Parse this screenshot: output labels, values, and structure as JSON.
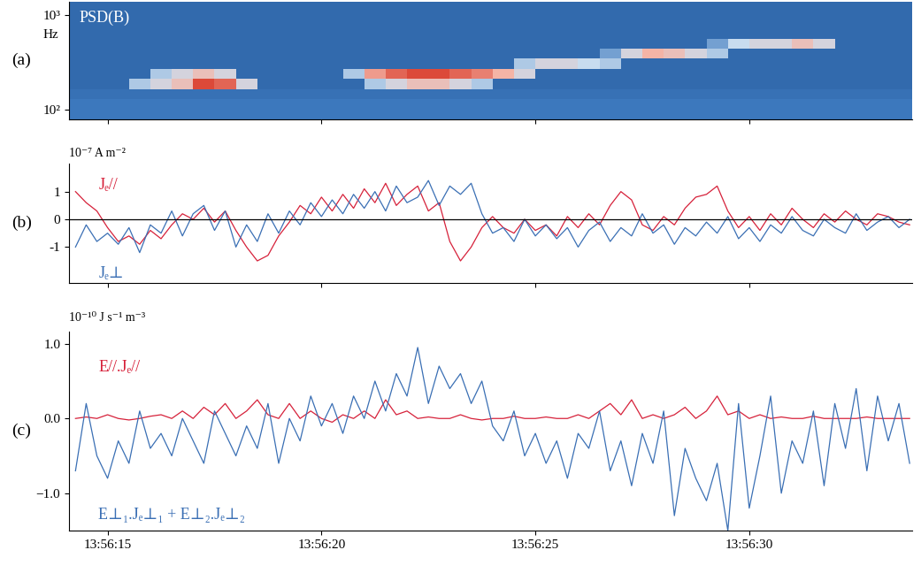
{
  "chart_data": [
    {
      "type": "heatmap",
      "label": "(a)",
      "title": "PSD(B)",
      "y_label": "Hz",
      "log": "y",
      "tick_labels": "y",
      "xlim": [
        14.1,
        33.8
      ],
      "xticks": [
        {
          "value": 15,
          "label": "13:56:15"
        },
        {
          "value": 20,
          "label": "13:56:20"
        },
        {
          "value": 25,
          "label": "13:56:25"
        },
        {
          "value": 30,
          "label": "13:56:30"
        }
      ],
      "ylim": [
        80,
        1370
      ],
      "yticks": [
        {
          "value": 100,
          "label": "10²"
        },
        {
          "value": 1000,
          "label": "10³"
        }
      ],
      "color_range": [
        0,
        1
      ],
      "time_edges": [
        14.0,
        14.5,
        15.0,
        15.5,
        16.0,
        16.5,
        17.0,
        17.5,
        18.0,
        18.5,
        19.0,
        19.5,
        20.0,
        20.5,
        21.0,
        21.5,
        22.0,
        22.5,
        23.0,
        23.5,
        24.0,
        24.5,
        25.0,
        25.5,
        26.0,
        26.5,
        27.0,
        27.5,
        28.0,
        28.5,
        29.0,
        29.5,
        30.0,
        30.5,
        31.0,
        31.5,
        32.0,
        32.5,
        33.0,
        33.5,
        34.0
      ],
      "freq_edges": [
        80,
        102,
        130,
        166,
        212,
        270,
        345,
        440,
        560,
        715,
        910,
        1160,
        1370
      ],
      "cells": [
        [
          0.3,
          0.3,
          0.3,
          0.3,
          0.3,
          0.3,
          0.3,
          0.3,
          0.3,
          0.3,
          0.3,
          0.3,
          0.3,
          0.3,
          0.3,
          0.3,
          0.3,
          0.3,
          0.3,
          0.3,
          0.3,
          0.3,
          0.3,
          0.3,
          0.3,
          0.3,
          0.3,
          0.3,
          0.3,
          0.3,
          0.3,
          0.3,
          0.3,
          0.3,
          0.3,
          0.3,
          0.3,
          0.3,
          0.3,
          0.3
        ],
        [
          0.3,
          0.3,
          0.3,
          0.3,
          0.3,
          0.3,
          0.3,
          0.3,
          0.3,
          0.3,
          0.3,
          0.3,
          0.3,
          0.3,
          0.3,
          0.3,
          0.3,
          0.3,
          0.3,
          0.3,
          0.3,
          0.3,
          0.3,
          0.3,
          0.3,
          0.3,
          0.3,
          0.3,
          0.3,
          0.3,
          0.3,
          0.3,
          0.3,
          0.3,
          0.3,
          0.3,
          0.3,
          0.3,
          0.3,
          0.3
        ],
        [
          0.25,
          0.25,
          0.25,
          0.25,
          0.25,
          0.25,
          0.25,
          0.25,
          0.25,
          0.25,
          0.25,
          0.25,
          0.25,
          0.25,
          0.25,
          0.25,
          0.25,
          0.25,
          0.25,
          0.25,
          0.25,
          0.25,
          0.25,
          0.25,
          0.25,
          0.25,
          0.25,
          0.25,
          0.25,
          0.25,
          0.25,
          0.25,
          0.25,
          0.25,
          0.25,
          0.25,
          0.25,
          0.25,
          0.25,
          0.25
        ],
        [
          0.2,
          0.2,
          0.2,
          0.5,
          0.6,
          0.7,
          0.95,
          0.9,
          0.6,
          0.2,
          0.2,
          0.2,
          0.2,
          0.2,
          0.5,
          0.6,
          0.7,
          0.7,
          0.6,
          0.5,
          0.2,
          0.2,
          0.2,
          0.2,
          0.2,
          0.2,
          0.2,
          0.2,
          0.2,
          0.2,
          0.2,
          0.2,
          0.2,
          0.2,
          0.2,
          0.2,
          0.2,
          0.2,
          0.2,
          0.2
        ],
        [
          0.2,
          0.2,
          0.2,
          0.2,
          0.5,
          0.6,
          0.7,
          0.6,
          0.2,
          0.2,
          0.2,
          0.2,
          0.2,
          0.5,
          0.8,
          0.9,
          0.95,
          0.95,
          0.9,
          0.85,
          0.75,
          0.6,
          0.2,
          0.2,
          0.2,
          0.2,
          0.2,
          0.2,
          0.2,
          0.2,
          0.2,
          0.2,
          0.2,
          0.2,
          0.2,
          0.2,
          0.2,
          0.2,
          0.2,
          0.2
        ],
        [
          0.2,
          0.2,
          0.2,
          0.2,
          0.2,
          0.2,
          0.2,
          0.2,
          0.2,
          0.2,
          0.2,
          0.2,
          0.2,
          0.2,
          0.2,
          0.2,
          0.2,
          0.2,
          0.2,
          0.2,
          0.2,
          0.5,
          0.6,
          0.6,
          0.55,
          0.5,
          0.2,
          0.2,
          0.2,
          0.2,
          0.2,
          0.2,
          0.2,
          0.2,
          0.2,
          0.2,
          0.2,
          0.2,
          0.2,
          0.2
        ],
        [
          0.2,
          0.2,
          0.2,
          0.2,
          0.2,
          0.2,
          0.2,
          0.2,
          0.2,
          0.2,
          0.2,
          0.2,
          0.2,
          0.2,
          0.2,
          0.2,
          0.2,
          0.2,
          0.2,
          0.2,
          0.2,
          0.2,
          0.2,
          0.2,
          0.2,
          0.4,
          0.6,
          0.75,
          0.7,
          0.6,
          0.5,
          0.2,
          0.2,
          0.2,
          0.2,
          0.2,
          0.2,
          0.2,
          0.2,
          0.2
        ],
        [
          0.2,
          0.2,
          0.2,
          0.2,
          0.2,
          0.2,
          0.2,
          0.2,
          0.2,
          0.2,
          0.2,
          0.2,
          0.2,
          0.2,
          0.2,
          0.2,
          0.2,
          0.2,
          0.2,
          0.2,
          0.2,
          0.2,
          0.2,
          0.2,
          0.2,
          0.2,
          0.2,
          0.2,
          0.2,
          0.2,
          0.4,
          0.55,
          0.6,
          0.6,
          0.7,
          0.6,
          0.2,
          0.2,
          0.2,
          0.2
        ],
        [
          0.2,
          0.2,
          0.2,
          0.2,
          0.2,
          0.2,
          0.2,
          0.2,
          0.2,
          0.2,
          0.2,
          0.2,
          0.2,
          0.2,
          0.2,
          0.2,
          0.2,
          0.2,
          0.2,
          0.2,
          0.2,
          0.2,
          0.2,
          0.2,
          0.2,
          0.2,
          0.2,
          0.2,
          0.2,
          0.2,
          0.2,
          0.2,
          0.2,
          0.2,
          0.2,
          0.2,
          0.2,
          0.2,
          0.2,
          0.2
        ],
        [
          0.2,
          0.2,
          0.2,
          0.2,
          0.2,
          0.2,
          0.2,
          0.2,
          0.2,
          0.2,
          0.2,
          0.2,
          0.2,
          0.2,
          0.2,
          0.2,
          0.2,
          0.2,
          0.2,
          0.2,
          0.2,
          0.2,
          0.2,
          0.2,
          0.2,
          0.2,
          0.2,
          0.2,
          0.2,
          0.2,
          0.2,
          0.2,
          0.2,
          0.2,
          0.2,
          0.2,
          0.2,
          0.2,
          0.2,
          0.2
        ],
        [
          0.2,
          0.2,
          0.2,
          0.2,
          0.2,
          0.2,
          0.2,
          0.2,
          0.2,
          0.2,
          0.2,
          0.2,
          0.2,
          0.2,
          0.2,
          0.2,
          0.2,
          0.2,
          0.2,
          0.2,
          0.2,
          0.2,
          0.2,
          0.2,
          0.2,
          0.2,
          0.2,
          0.2,
          0.2,
          0.2,
          0.2,
          0.2,
          0.2,
          0.2,
          0.2,
          0.2,
          0.2,
          0.2,
          0.2,
          0.2
        ],
        [
          0.2,
          0.2,
          0.2,
          0.2,
          0.2,
          0.2,
          0.2,
          0.2,
          0.2,
          0.2,
          0.2,
          0.2,
          0.2,
          0.2,
          0.2,
          0.2,
          0.2,
          0.2,
          0.2,
          0.2,
          0.2,
          0.2,
          0.2,
          0.2,
          0.2,
          0.2,
          0.2,
          0.2,
          0.2,
          0.2,
          0.2,
          0.2,
          0.2,
          0.2,
          0.2,
          0.2,
          0.2,
          0.2,
          0.2,
          0.2
        ]
      ]
    },
    {
      "type": "line",
      "label": "(b)",
      "y_label": "10⁻⁷ A m⁻²",
      "tick_labels": "y",
      "reference_line": 0,
      "xlim": [
        14.1,
        33.8
      ],
      "xticks": [
        {
          "value": 15,
          "label": "13:56:15"
        },
        {
          "value": 20,
          "label": "13:56:20"
        },
        {
          "value": 25,
          "label": "13:56:25"
        },
        {
          "value": 30,
          "label": "13:56:30"
        }
      ],
      "ylim": [
        -2.3,
        2.0
      ],
      "yticks": [
        -1,
        0,
        1
      ],
      "x": [
        14.25,
        14.5,
        14.75,
        15.0,
        15.25,
        15.5,
        15.75,
        16.0,
        16.25,
        16.5,
        16.75,
        17.0,
        17.25,
        17.5,
        17.75,
        18.0,
        18.25,
        18.5,
        18.75,
        19.0,
        19.25,
        19.5,
        19.75,
        20.0,
        20.25,
        20.5,
        20.75,
        21.0,
        21.25,
        21.5,
        21.75,
        22.0,
        22.25,
        22.5,
        22.75,
        23.0,
        23.25,
        23.5,
        23.75,
        24.0,
        24.25,
        24.5,
        24.75,
        25.0,
        25.25,
        25.5,
        25.75,
        26.0,
        26.25,
        26.5,
        26.75,
        27.0,
        27.25,
        27.5,
        27.75,
        28.0,
        28.25,
        28.5,
        28.75,
        29.0,
        29.25,
        29.5,
        29.75,
        30.0,
        30.25,
        30.5,
        30.75,
        31.0,
        31.25,
        31.5,
        31.75,
        32.0,
        32.25,
        32.5,
        32.75,
        33.0,
        33.25,
        33.5,
        33.75
      ],
      "series": [
        {
          "name": "Jₑ//",
          "color": "#d6213a",
          "values": [
            1.0,
            0.6,
            0.3,
            -0.3,
            -0.8,
            -0.6,
            -0.9,
            -0.4,
            -0.7,
            -0.2,
            0.2,
            0.0,
            0.4,
            -0.1,
            0.3,
            -0.4,
            -1.0,
            -1.5,
            -1.3,
            -0.6,
            -0.1,
            0.5,
            0.2,
            0.8,
            0.3,
            0.9,
            0.4,
            1.1,
            0.6,
            1.3,
            0.5,
            0.9,
            1.2,
            0.3,
            0.6,
            -0.8,
            -1.5,
            -1.0,
            -0.3,
            0.1,
            -0.3,
            -0.5,
            0.0,
            -0.4,
            -0.2,
            -0.6,
            0.1,
            -0.3,
            0.2,
            -0.2,
            0.5,
            1.0,
            0.7,
            -0.2,
            -0.4,
            0.1,
            -0.2,
            0.4,
            0.8,
            0.9,
            1.2,
            0.3,
            -0.3,
            0.1,
            -0.4,
            0.2,
            -0.2,
            0.4,
            0.0,
            -0.3,
            0.2,
            -0.1,
            0.3,
            0.0,
            -0.2,
            0.2,
            0.1,
            -0.1,
            -0.2
          ]
        },
        {
          "name": "Jₑ⊥",
          "color": "#3a6fb4",
          "values": [
            -1.0,
            -0.2,
            -0.8,
            -0.5,
            -0.9,
            -0.3,
            -1.2,
            -0.2,
            -0.5,
            0.3,
            -0.6,
            0.2,
            0.5,
            -0.4,
            0.3,
            -1.0,
            -0.2,
            -0.8,
            0.2,
            -0.5,
            0.3,
            -0.2,
            0.6,
            0.1,
            0.7,
            0.2,
            0.9,
            0.4,
            1.0,
            0.3,
            1.2,
            0.6,
            0.8,
            1.4,
            0.5,
            1.2,
            0.9,
            1.3,
            0.2,
            -0.5,
            -0.3,
            -0.8,
            0.0,
            -0.6,
            -0.2,
            -0.7,
            -0.3,
            -1.0,
            -0.4,
            -0.1,
            -0.8,
            -0.3,
            -0.6,
            0.2,
            -0.5,
            -0.2,
            -0.9,
            -0.3,
            -0.6,
            -0.1,
            -0.5,
            0.1,
            -0.7,
            -0.3,
            -0.8,
            -0.2,
            -0.5,
            0.1,
            -0.4,
            -0.6,
            0.0,
            -0.3,
            -0.5,
            0.2,
            -0.4,
            -0.1,
            0.1,
            -0.3,
            0.0
          ]
        }
      ]
    },
    {
      "type": "line",
      "label": "(c)",
      "y_label": "10⁻¹⁰ J s⁻¹ m⁻³",
      "xlim": [
        14.1,
        33.8
      ],
      "xticks": [
        {
          "value": 15,
          "label": "13:56:15"
        },
        {
          "value": 20,
          "label": "13:56:20"
        },
        {
          "value": 25,
          "label": "13:56:25"
        },
        {
          "value": 30,
          "label": "13:56:30"
        }
      ],
      "ylim": [
        -1.5,
        1.16
      ],
      "yticks": [
        {
          "value": -1,
          "label": "−1.0"
        },
        {
          "value": 0,
          "label": "0.0"
        },
        {
          "value": 1,
          "label": "1.0"
        }
      ],
      "x": [
        14.25,
        14.5,
        14.75,
        15.0,
        15.25,
        15.5,
        15.75,
        16.0,
        16.25,
        16.5,
        16.75,
        17.0,
        17.25,
        17.5,
        17.75,
        18.0,
        18.25,
        18.5,
        18.75,
        19.0,
        19.25,
        19.5,
        19.75,
        20.0,
        20.25,
        20.5,
        20.75,
        21.0,
        21.25,
        21.5,
        21.75,
        22.0,
        22.25,
        22.5,
        22.75,
        23.0,
        23.25,
        23.5,
        23.75,
        24.0,
        24.25,
        24.5,
        24.75,
        25.0,
        25.25,
        25.5,
        25.75,
        26.0,
        26.25,
        26.5,
        26.75,
        27.0,
        27.25,
        27.5,
        27.75,
        28.0,
        28.25,
        28.5,
        28.75,
        29.0,
        29.25,
        29.5,
        29.75,
        30.0,
        30.25,
        30.5,
        30.75,
        31.0,
        31.25,
        31.5,
        31.75,
        32.0,
        32.25,
        32.5,
        32.75,
        33.0,
        33.25,
        33.5,
        33.75
      ],
      "series": [
        {
          "name": "E//.Jₑ//",
          "color": "#d6213a",
          "values": [
            0.0,
            0.02,
            0.0,
            0.05,
            0.0,
            -0.02,
            0.0,
            0.03,
            0.05,
            0.0,
            0.1,
            0.0,
            0.15,
            0.05,
            0.2,
            0.0,
            0.1,
            0.25,
            0.05,
            0.0,
            0.2,
            0.0,
            0.1,
            0.0,
            -0.05,
            0.05,
            0.0,
            0.1,
            0.0,
            0.25,
            0.05,
            0.1,
            0.0,
            0.02,
            0.0,
            0.0,
            0.05,
            0.0,
            -0.02,
            0.0,
            0.0,
            0.03,
            0.0,
            0.0,
            0.02,
            0.0,
            0.0,
            0.05,
            0.0,
            0.1,
            0.2,
            0.05,
            0.25,
            0.0,
            0.05,
            0.0,
            0.05,
            0.15,
            0.0,
            0.1,
            0.3,
            0.05,
            0.1,
            0.0,
            0.05,
            0.0,
            0.02,
            0.0,
            0.0,
            0.03,
            0.0,
            0.0,
            0.0,
            0.0,
            0.02,
            0.0,
            0.0,
            0.0,
            0.0
          ]
        },
        {
          "name": "E⊥₁.Jₑ⊥₁ + E⊥₂.Jₑ⊥₂",
          "color": "#3a6fb4",
          "values": [
            -0.7,
            0.2,
            -0.5,
            -0.8,
            -0.3,
            -0.6,
            0.1,
            -0.4,
            -0.2,
            -0.5,
            0.0,
            -0.3,
            -0.6,
            0.1,
            -0.2,
            -0.5,
            -0.1,
            -0.4,
            0.2,
            -0.6,
            0.0,
            -0.3,
            0.3,
            -0.1,
            0.2,
            -0.2,
            0.3,
            0.0,
            0.5,
            0.1,
            0.6,
            0.3,
            0.95,
            0.2,
            0.7,
            0.4,
            0.6,
            0.2,
            0.5,
            -0.1,
            -0.3,
            0.1,
            -0.5,
            -0.2,
            -0.6,
            -0.3,
            -0.8,
            -0.2,
            -0.4,
            0.1,
            -0.7,
            -0.3,
            -0.9,
            -0.2,
            -0.6,
            0.1,
            -1.3,
            -0.4,
            -0.8,
            -1.1,
            -0.6,
            -1.5,
            0.2,
            -1.2,
            -0.5,
            0.3,
            -1.0,
            -0.3,
            -0.6,
            0.1,
            -0.9,
            0.2,
            -0.4,
            0.4,
            -0.7,
            0.3,
            -0.3,
            0.2,
            -0.6
          ]
        }
      ]
    }
  ]
}
